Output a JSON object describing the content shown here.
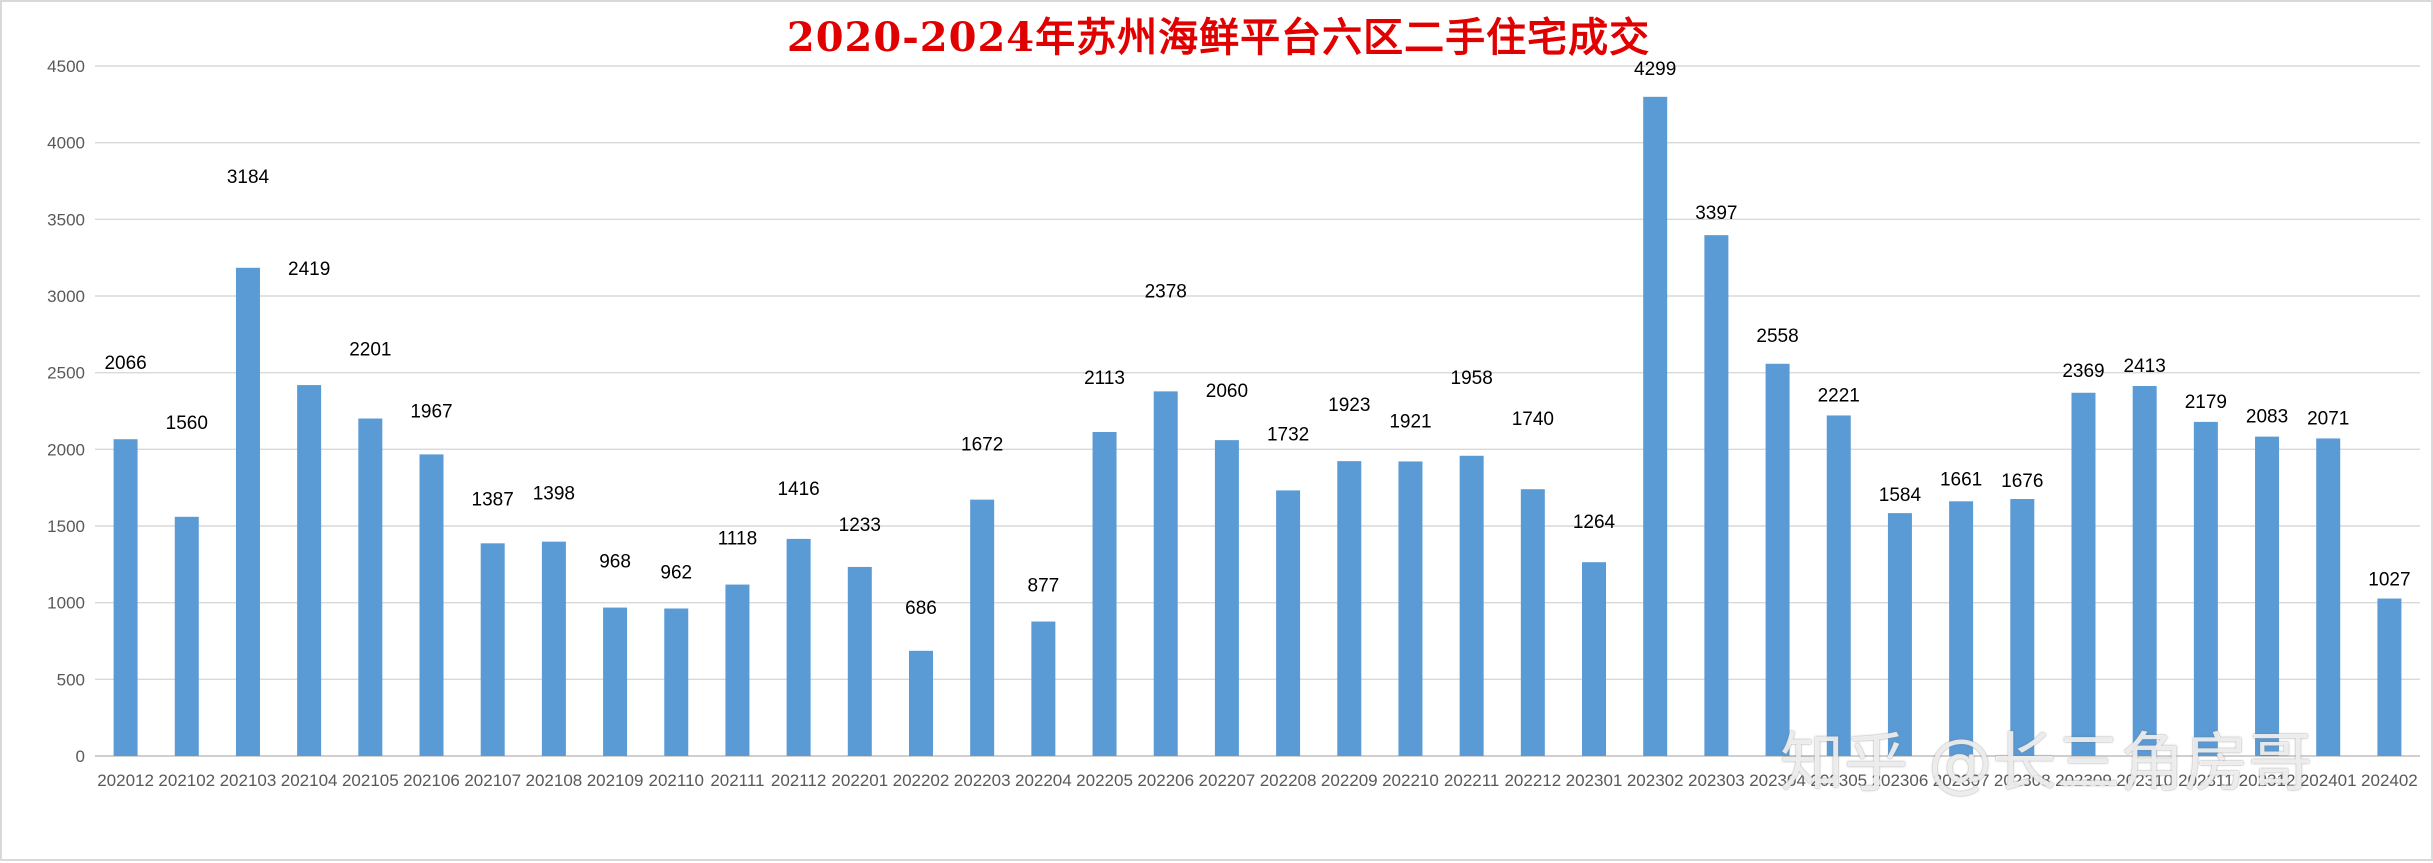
{
  "watermark": "知乎 @长三角房哥",
  "chart_data": {
    "type": "bar",
    "title": "2020-2024年苏州海鲜平台六区二手住宅成交",
    "xlabel": "",
    "ylabel": "",
    "ylim": [
      0,
      4500
    ],
    "ytick_step": 500,
    "grid": true,
    "legend": "none",
    "bar_color": "#5b9bd5",
    "grid_color": "#d9d9d9",
    "title_color": "#e00000",
    "categories": [
      "202012",
      "202102",
      "202103",
      "202104",
      "202105",
      "202106",
      "202107",
      "202108",
      "202109",
      "202110",
      "202111",
      "202112",
      "202201",
      "202202",
      "202203",
      "202204",
      "202205",
      "202206",
      "202207",
      "202208",
      "202209",
      "202210",
      "202211",
      "202212",
      "202301",
      "202302",
      "202303",
      "202304",
      "202305",
      "202306",
      "202307",
      "202308",
      "202309",
      "202310",
      "202311",
      "202312",
      "202401",
      "202402"
    ],
    "values": [
      2066,
      1560,
      3184,
      2419,
      2201,
      1967,
      1387,
      1398,
      968,
      962,
      1118,
      1416,
      1233,
      686,
      1672,
      877,
      2113,
      2378,
      2060,
      1732,
      1923,
      1921,
      1958,
      1740,
      1264,
      4299,
      3397,
      2558,
      2221,
      1584,
      1661,
      1676,
      2369,
      2413,
      2179,
      2083,
      2071,
      1027
    ]
  }
}
